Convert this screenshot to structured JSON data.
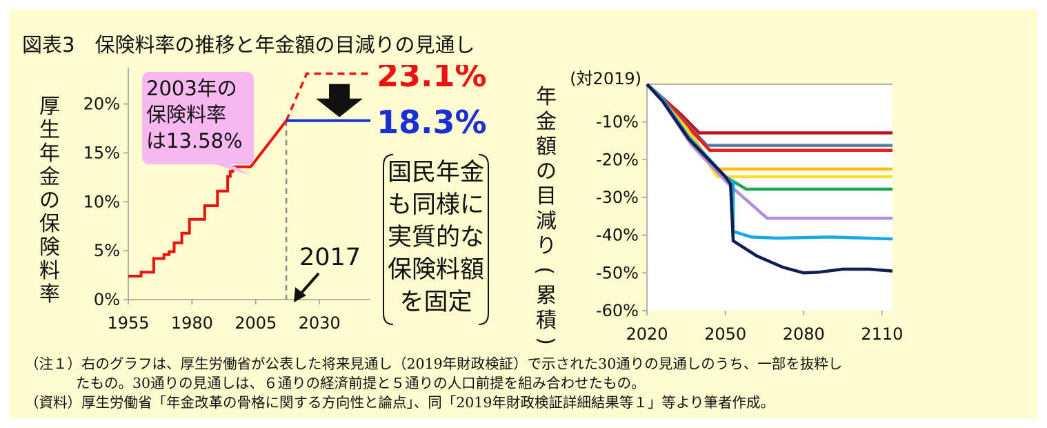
{
  "title": "図表3　保険料率の推移と年金額の目減りの見通し",
  "chart_data": [
    {
      "type": "line",
      "ylabel": "厚生年金の保険料率",
      "xlim": [
        1955,
        2050
      ],
      "ylim": [
        0,
        24
      ],
      "x_ticks": [
        "1955",
        "1980",
        "2005",
        "2030"
      ],
      "y_ticks": [
        "0%",
        "5%",
        "10%",
        "15%",
        "20%"
      ],
      "y_tick_values": [
        0,
        5,
        10,
        15,
        20
      ],
      "history_step": [
        [
          1955,
          2.4
        ],
        [
          1960,
          2.4
        ],
        [
          1960,
          2.8
        ],
        [
          1965,
          2.8
        ],
        [
          1965,
          4.2
        ],
        [
          1969,
          4.2
        ],
        [
          1969,
          4.6
        ],
        [
          1971,
          4.6
        ],
        [
          1971,
          4.9
        ],
        [
          1973,
          4.9
        ],
        [
          1973,
          5.8
        ],
        [
          1976,
          5.8
        ],
        [
          1976,
          6.8
        ],
        [
          1979,
          6.8
        ],
        [
          1979,
          8.2
        ],
        [
          1985,
          8.2
        ],
        [
          1985,
          9.6
        ],
        [
          1990,
          9.6
        ],
        [
          1990,
          11.1
        ],
        [
          1994,
          11.1
        ],
        [
          1994,
          12.6
        ],
        [
          1995,
          12.6
        ],
        [
          1995,
          13.1
        ],
        [
          1996,
          13.1
        ],
        [
          1996,
          13.58
        ],
        [
          2003,
          13.58
        ],
        [
          2004,
          13.9
        ],
        [
          2017,
          18.3
        ]
      ],
      "projection_dashed": [
        [
          2017,
          18.3
        ],
        [
          2025,
          23.1
        ],
        [
          2050,
          23.1
        ]
      ],
      "fixed_line": [
        [
          2017,
          18.3
        ],
        [
          2050,
          18.3
        ]
      ],
      "vline_x": 2017,
      "label_high": "23.1%",
      "label_low": "18.3%",
      "callout": "2003年の\n保険料率\nは13.58%",
      "year_label": "2017",
      "note_box": "国民年金\nも同様に\n実質的な\n保険料額\nを固定",
      "colors": {
        "history": "#ee1111",
        "fixed": "#1a2fd6",
        "label_high": "#ee1111",
        "label_low": "#1a2fd6",
        "callout_bg": "#f7b8f0"
      }
    },
    {
      "type": "line",
      "ylabel": "年金額の目減り（累積）",
      "y_unit": "(対2019)",
      "xlim": [
        2020,
        2114
      ],
      "ylim": [
        -60,
        0
      ],
      "x_ticks": [
        "2020",
        "2050",
        "2080",
        "2110"
      ],
      "x_tick_values": [
        2020,
        2050,
        2080,
        2110
      ],
      "y_ticks": [
        "-10%",
        "-20%",
        "-30%",
        "-40%",
        "-50%",
        "-60%"
      ],
      "y_tick_values": [
        -10,
        -20,
        -30,
        -40,
        -50,
        -60
      ],
      "series": [
        {
          "color": "#c0141e",
          "points": [
            [
              2020,
              0
            ],
            [
              2025,
              -3
            ],
            [
              2033,
              -8
            ],
            [
              2040,
              -12.9
            ],
            [
              2114,
              -12.9
            ]
          ]
        },
        {
          "color": "#5b7aa8",
          "points": [
            [
              2020,
              0
            ],
            [
              2025,
              -3
            ],
            [
              2033,
              -9
            ],
            [
              2043,
              -16.2
            ],
            [
              2114,
              -16.2
            ]
          ]
        },
        {
          "color": "#ee1c1c",
          "points": [
            [
              2020,
              0
            ],
            [
              2025,
              -3.2
            ],
            [
              2034,
              -10
            ],
            [
              2044,
              -17.5
            ],
            [
              2114,
              -17.5
            ]
          ]
        },
        {
          "color": "#ffc000",
          "points": [
            [
              2020,
              0
            ],
            [
              2025,
              -3.5
            ],
            [
              2035,
              -11.5
            ],
            [
              2046,
              -22.5
            ],
            [
              2114,
              -22.5
            ]
          ]
        },
        {
          "color": "#ffe020",
          "points": [
            [
              2020,
              0
            ],
            [
              2025,
              -3.5
            ],
            [
              2035,
              -12
            ],
            [
              2047,
              -24.5
            ],
            [
              2114,
              -24.5
            ]
          ]
        },
        {
          "color": "#1ea550",
          "points": [
            [
              2020,
              0
            ],
            [
              2026,
              -4
            ],
            [
              2036,
              -14
            ],
            [
              2050,
              -24.5
            ],
            [
              2058,
              -27.8
            ],
            [
              2114,
              -27.8
            ]
          ]
        },
        {
          "color": "#b08ed8",
          "points": [
            [
              2020,
              0
            ],
            [
              2026,
              -4.5
            ],
            [
              2037,
              -16
            ],
            [
              2052,
              -27
            ],
            [
              2066,
              -35.5
            ],
            [
              2114,
              -35.5
            ]
          ]
        },
        {
          "color": "#18a8e8",
          "points": [
            [
              2020,
              0
            ],
            [
              2026,
              -4
            ],
            [
              2036,
              -14
            ],
            [
              2050,
              -24.5
            ],
            [
              2053,
              -26
            ],
            [
              2053,
              -39
            ],
            [
              2060,
              -40.5
            ],
            [
              2070,
              -40.8
            ],
            [
              2090,
              -40.5
            ],
            [
              2114,
              -41
            ]
          ]
        },
        {
          "color": "#101e50",
          "points": [
            [
              2020,
              0
            ],
            [
              2026,
              -4.5
            ],
            [
              2036,
              -14.5
            ],
            [
              2050,
              -24.5
            ],
            [
              2052,
              -26.5
            ],
            [
              2053,
              -41.5
            ],
            [
              2062,
              -45.5
            ],
            [
              2072,
              -48.5
            ],
            [
              2080,
              -50
            ],
            [
              2086,
              -49.8
            ],
            [
              2095,
              -49
            ],
            [
              2105,
              -49
            ],
            [
              2114,
              -49.5
            ]
          ]
        }
      ]
    }
  ],
  "notes": {
    "note1_label": "（注１）",
    "note1_line1": "右のグラフは、厚生労働省が公表した将来見通し（2019年財政検証）で示された30通りの見通しのうち、一部を抜粋し",
    "note1_line2": "たもの。30通りの見通しは、６通りの経済前提と５通りの人口前提を組み合わせたもの。",
    "source_label": "（資料）",
    "source_text": "厚生労働省「年金改革の骨格に関する方向性と論点」、同「2019年財政検証詳細結果等１」等より筆者作成。"
  }
}
